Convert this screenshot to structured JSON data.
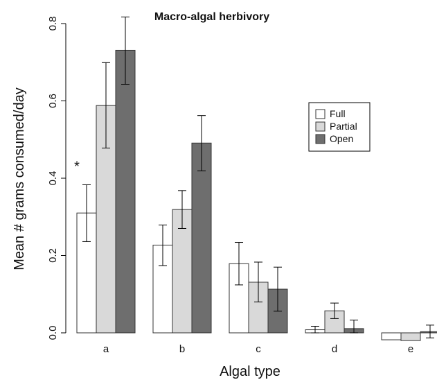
{
  "chart_data": {
    "type": "bar",
    "title": "Macro-algal herbivory",
    "xlabel": "Algal type",
    "ylabel": "Mean # grams consumed/day",
    "categories": [
      "a",
      "b",
      "c",
      "d",
      "e"
    ],
    "ylim": [
      0,
      0.8
    ],
    "yticks": [
      "0.0",
      "0.2",
      "0.4",
      "0.6",
      "0.8"
    ],
    "grid": false,
    "legend_position": "right",
    "series": [
      {
        "name": "Full",
        "color": "#ffffff",
        "values": [
          0.31,
          0.227,
          0.179,
          0.008,
          -0.018
        ],
        "err_low": [
          0.236,
          0.174,
          0.124,
          0.0,
          -0.018
        ],
        "err_high": [
          0.383,
          0.279,
          0.234,
          0.017,
          -0.018
        ]
      },
      {
        "name": "Partial",
        "color": "#d9d9d9",
        "values": [
          0.588,
          0.319,
          0.131,
          0.057,
          -0.02
        ],
        "err_low": [
          0.478,
          0.27,
          0.08,
          0.037,
          -0.02
        ],
        "err_high": [
          0.699,
          0.368,
          0.183,
          0.077,
          -0.02
        ]
      },
      {
        "name": "Open",
        "color": "#6e6e6e",
        "values": [
          0.731,
          0.491,
          0.113,
          0.011,
          0.003
        ],
        "err_low": [
          0.643,
          0.419,
          0.056,
          0.0,
          -0.013
        ],
        "err_high": [
          0.817,
          0.562,
          0.17,
          0.033,
          0.02
        ]
      }
    ],
    "annotations": [
      {
        "text": "*",
        "category": "a",
        "series": "Full"
      }
    ]
  }
}
